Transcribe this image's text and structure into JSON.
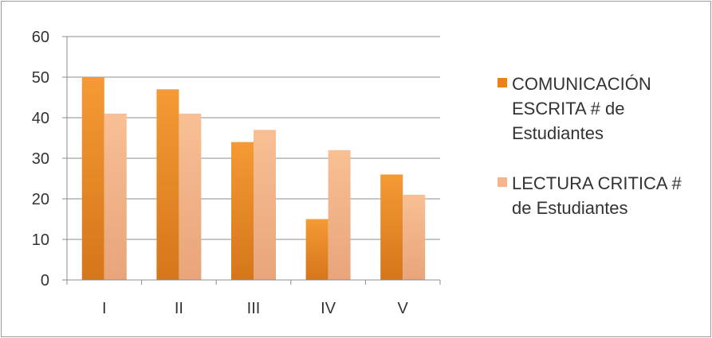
{
  "chart_data": {
    "type": "bar",
    "categories": [
      "I",
      "II",
      "III",
      "IV",
      "V"
    ],
    "series": [
      {
        "name": "COMUNICACIÓN ESCRITA #  de Estudiantes",
        "values": [
          50,
          47,
          34,
          15,
          26
        ],
        "color": "#e8821c",
        "color_top": "#f59a35",
        "color_bottom": "#d5761a"
      },
      {
        "name": "LECTURA CRITICA # de Estudiantes",
        "values": [
          41,
          41,
          37,
          32,
          21
        ],
        "color": "#f5b489",
        "color_top": "#f8bf95",
        "color_bottom": "#e9a47a"
      }
    ],
    "ylim": [
      0,
      60
    ],
    "yticks": [
      0,
      10,
      20,
      30,
      40,
      50,
      60
    ],
    "title": "",
    "xlabel": "",
    "ylabel": "",
    "grid": true,
    "legend_position": "right"
  }
}
